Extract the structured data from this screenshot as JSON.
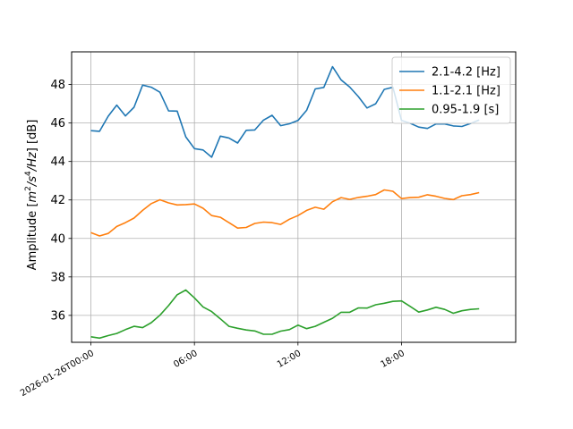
{
  "chart_data": {
    "type": "line",
    "title": "",
    "xlabel": "",
    "ylabel": "Amplitude [m²/s⁴/Hz] [dB]",
    "ylabel_parts": {
      "pre": "Amplitude [",
      "m": "m",
      "sup2": "2",
      "s": "/s",
      "sup4": "4",
      "hz": "/Hz",
      "post": "] [dB]"
    },
    "xlim": [
      "2026-01-25T22:53",
      "2026-01-27T00:37"
    ],
    "ylim": [
      34.6,
      49.7
    ],
    "xticks": [
      {
        "value": "2026-01-26T00:00",
        "label": "2026-01-26T00:00"
      },
      {
        "value": "2026-01-26T06:00",
        "label": "06:00"
      },
      {
        "value": "2026-01-26T12:00",
        "label": "12:00"
      },
      {
        "value": "2026-01-26T18:00",
        "label": "18:00"
      }
    ],
    "yticks": [
      36,
      38,
      40,
      42,
      44,
      46,
      48
    ],
    "grid": true,
    "legend_position": "upper right",
    "x": [
      "2026-01-26T00:00",
      "2026-01-26T00:30",
      "2026-01-26T01:00",
      "2026-01-26T01:30",
      "2026-01-26T02:00",
      "2026-01-26T02:30",
      "2026-01-26T03:00",
      "2026-01-26T03:30",
      "2026-01-26T04:00",
      "2026-01-26T04:30",
      "2026-01-26T05:00",
      "2026-01-26T05:30",
      "2026-01-26T06:00",
      "2026-01-26T06:30",
      "2026-01-26T07:00",
      "2026-01-26T07:30",
      "2026-01-26T08:00",
      "2026-01-26T08:30",
      "2026-01-26T09:00",
      "2026-01-26T09:30",
      "2026-01-26T10:00",
      "2026-01-26T10:30",
      "2026-01-26T11:00",
      "2026-01-26T11:30",
      "2026-01-26T12:00",
      "2026-01-26T12:30",
      "2026-01-26T13:00",
      "2026-01-26T13:30",
      "2026-01-26T14:00",
      "2026-01-26T14:30",
      "2026-01-26T15:00",
      "2026-01-26T15:30",
      "2026-01-26T16:00",
      "2026-01-26T16:30",
      "2026-01-26T17:00",
      "2026-01-26T17:30",
      "2026-01-26T18:00",
      "2026-01-26T18:30",
      "2026-01-26T19:00",
      "2026-01-26T19:30",
      "2026-01-26T20:00",
      "2026-01-26T20:30",
      "2026-01-26T21:00",
      "2026-01-26T21:30",
      "2026-01-26T22:00",
      "2026-01-26T22:30"
    ],
    "series": [
      {
        "name": "2.1-4.2 [Hz]",
        "color": "#1f77b4",
        "values": [
          45.6,
          45.57,
          46.35,
          46.93,
          46.37,
          46.82,
          47.97,
          47.86,
          47.6,
          46.63,
          46.62,
          45.28,
          44.67,
          44.6,
          44.22,
          45.32,
          45.22,
          44.96,
          45.62,
          45.64,
          46.15,
          46.4,
          45.86,
          45.96,
          46.13,
          46.66,
          47.77,
          47.85,
          48.93,
          48.24,
          47.87,
          47.37,
          46.78,
          47.0,
          47.75,
          47.86,
          46.13,
          45.99,
          45.79,
          45.72,
          45.95,
          45.95,
          45.85,
          45.82,
          45.98,
          46.16
        ]
      },
      {
        "name": "1.1-2.1 [Hz]",
        "color": "#ff7f0e",
        "values": [
          40.3,
          40.13,
          40.26,
          40.62,
          40.82,
          41.06,
          41.46,
          41.81,
          42.01,
          41.85,
          41.74,
          41.76,
          41.79,
          41.57,
          41.19,
          41.1,
          40.82,
          40.54,
          40.57,
          40.78,
          40.85,
          40.82,
          40.73,
          41.0,
          41.19,
          41.46,
          41.62,
          41.52,
          41.91,
          42.12,
          42.03,
          42.13,
          42.19,
          42.28,
          42.52,
          42.45,
          42.07,
          42.12,
          42.14,
          42.27,
          42.19,
          42.08,
          42.02,
          42.22,
          42.28,
          42.38
        ]
      },
      {
        "name": "0.95-1.9 [s]",
        "color": "#2ca02c",
        "values": [
          34.89,
          34.82,
          34.95,
          35.06,
          35.26,
          35.43,
          35.36,
          35.62,
          36.01,
          36.51,
          37.07,
          37.32,
          36.91,
          36.44,
          36.2,
          35.82,
          35.43,
          35.33,
          35.24,
          35.19,
          35.02,
          35.02,
          35.18,
          35.26,
          35.49,
          35.31,
          35.43,
          35.64,
          35.85,
          36.16,
          36.16,
          36.39,
          36.38,
          36.55,
          36.63,
          36.73,
          36.75,
          36.47,
          36.17,
          36.28,
          36.42,
          36.31,
          36.11,
          36.24,
          36.31,
          36.34
        ]
      }
    ]
  }
}
